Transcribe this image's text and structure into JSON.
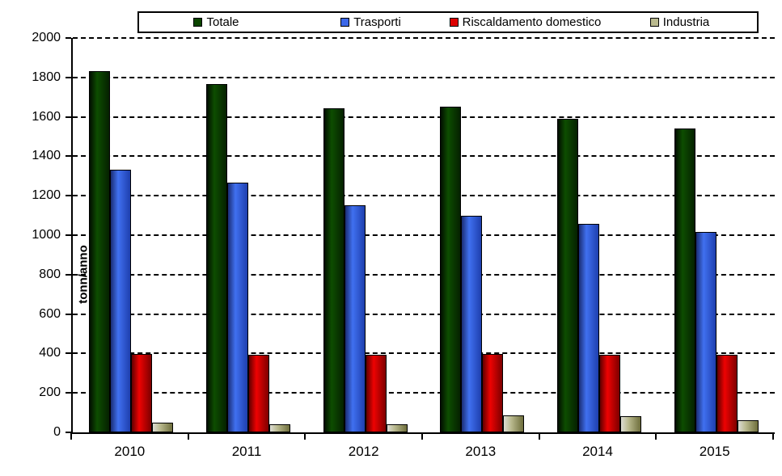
{
  "chart_data": {
    "type": "bar",
    "title": "",
    "xlabel": "",
    "ylabel": "tonn/anno",
    "ylim": [
      0,
      2000
    ],
    "ytick_step": 200,
    "grid": "horizontal-dashed",
    "legend_position": "top",
    "categories": [
      "2010",
      "2011",
      "2012",
      "2013",
      "2014",
      "2015"
    ],
    "series": [
      {
        "name": "Totale",
        "values": [
          1830,
          1765,
          1645,
          1650,
          1590,
          1540
        ],
        "color": "#0b4500",
        "gradient": [
          "#010e00",
          "#0d4d00",
          "#052100"
        ]
      },
      {
        "name": "Trasporti",
        "values": [
          1330,
          1265,
          1150,
          1100,
          1057,
          1015
        ],
        "color": "#3c68e8",
        "gradient": [
          "#1b2d74",
          "#4070f0",
          "#1e3fae"
        ]
      },
      {
        "name": "Riscaldamento domestico",
        "values": [
          398,
          395,
          392,
          398,
          392,
          392
        ],
        "color": "#dd0000",
        "gradient": [
          "#600000",
          "#ee0202",
          "#7e0000"
        ]
      },
      {
        "name": "Industria",
        "values": [
          48,
          40,
          42,
          87,
          81,
          63
        ],
        "color": "#b9b98e",
        "gradient": [
          "#dcdcd4",
          "#b9b98e",
          "#6e6e3c"
        ]
      }
    ]
  }
}
